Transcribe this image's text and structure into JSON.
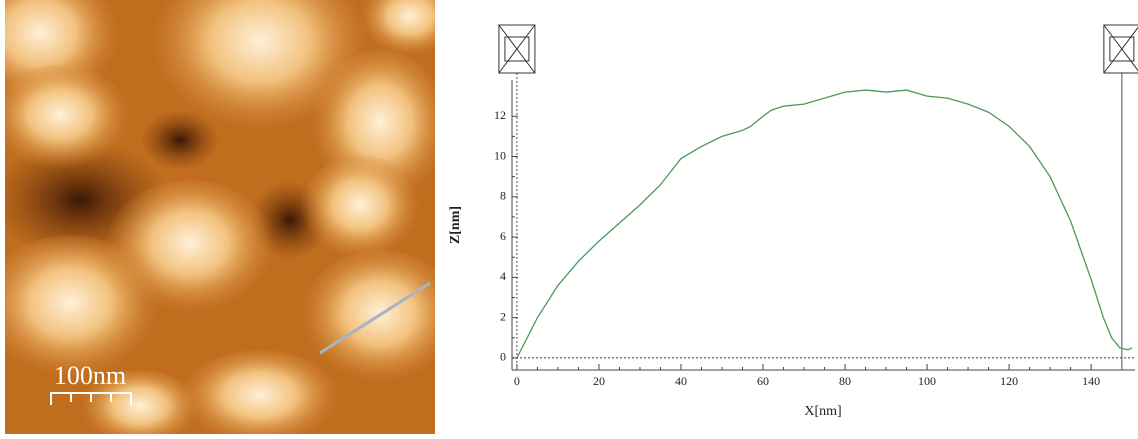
{
  "image": {
    "scale_bar_label": "100nm"
  },
  "chart_data": {
    "type": "line",
    "xlabel": "X[nm]",
    "ylabel": "Z[nm]",
    "x": [
      0,
      2,
      5,
      10,
      15,
      20,
      25,
      30,
      35,
      40,
      45,
      50,
      55,
      57,
      60,
      62,
      65,
      70,
      75,
      80,
      85,
      90,
      95,
      100,
      105,
      110,
      115,
      120,
      125,
      130,
      135,
      140,
      143,
      145,
      147,
      149,
      150
    ],
    "series": [
      {
        "color": "#4a9a5a",
        "values": [
          0,
          0.8,
          2,
          3.6,
          4.8,
          5.8,
          6.7,
          7.6,
          8.6,
          9.9,
          10.5,
          11.0,
          11.3,
          11.5,
          12.0,
          12.3,
          12.5,
          12.6,
          12.9,
          13.2,
          13.3,
          13.2,
          13.3,
          13.0,
          12.9,
          12.6,
          12.2,
          11.5,
          10.5,
          9.0,
          6.8,
          3.9,
          2.0,
          1.0,
          0.5,
          0.4,
          0.5
        ]
      }
    ],
    "xlim": [
      -1.2,
      150.7
    ],
    "ylim": [
      -0.6,
      13.8
    ],
    "xticks": [
      0,
      20,
      40,
      60,
      80,
      100,
      120,
      140
    ],
    "yticks": [
      0,
      2,
      4,
      6,
      8,
      10,
      12
    ],
    "cursors": [
      0,
      147.5
    ]
  }
}
